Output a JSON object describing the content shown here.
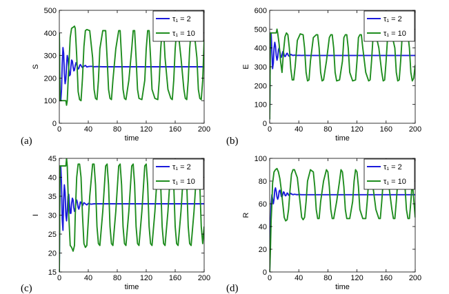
{
  "chart_data": [
    {
      "type": "line",
      "panel_label": "(a)",
      "ylabel": "S",
      "xlabel": "time",
      "xlim": [
        0,
        200
      ],
      "ylim": [
        0,
        500
      ],
      "xticks": [
        0,
        40,
        80,
        120,
        160,
        200
      ],
      "yticks": [
        0,
        100,
        200,
        300,
        400,
        500
      ],
      "legend_position": "top-right",
      "series": [
        {
          "name": "τ₁ = 2",
          "color": "#1a1adb",
          "x": [
            0,
            0.5,
            1,
            2,
            3,
            4,
            5,
            6,
            7,
            8,
            9,
            10,
            11,
            12,
            13,
            14,
            15,
            16,
            17,
            18,
            19,
            20,
            21,
            22,
            23,
            24,
            25,
            26,
            27,
            28,
            29,
            30,
            32,
            34,
            36,
            38,
            40,
            44,
            48,
            52,
            60,
            80,
            120,
            160,
            200
          ],
          "y": [
            400,
            250,
            100,
            100,
            150,
            260,
            335,
            310,
            220,
            175,
            195,
            260,
            300,
            285,
            240,
            210,
            215,
            250,
            280,
            275,
            250,
            232,
            235,
            255,
            268,
            262,
            248,
            240,
            243,
            255,
            260,
            255,
            246,
            252,
            256,
            249,
            251,
            252,
            250,
            251,
            250,
            250,
            250,
            250,
            250
          ]
        },
        {
          "name": "τ₁ = 10",
          "color": "#1e8c1e",
          "x": [
            0,
            0.5,
            1,
            5,
            9,
            10,
            11,
            13,
            15,
            17,
            19,
            21,
            22,
            24,
            26,
            28,
            30,
            32,
            34,
            36,
            38,
            42,
            46,
            48,
            50,
            52,
            54,
            56,
            60,
            64,
            66,
            68,
            70,
            72,
            74,
            78,
            82,
            84,
            86,
            88,
            90,
            92,
            96,
            100,
            102,
            104,
            106,
            108,
            110,
            114,
            118,
            120,
            122,
            124,
            126,
            128,
            132,
            136,
            138,
            140,
            142,
            144,
            146,
            150,
            154,
            156,
            158,
            160,
            162,
            164,
            168,
            172,
            174,
            176,
            178,
            180,
            182,
            186,
            190,
            192,
            194,
            196,
            198,
            200
          ],
          "y": [
            400,
            250,
            100,
            100,
            100,
            80,
            100,
            250,
            380,
            420,
            425,
            430,
            420,
            300,
            140,
            105,
            100,
            200,
            340,
            410,
            415,
            410,
            290,
            150,
            110,
            105,
            190,
            330,
            410,
            410,
            290,
            150,
            110,
            105,
            190,
            330,
            410,
            410,
            290,
            150,
            110,
            105,
            190,
            330,
            410,
            410,
            290,
            150,
            110,
            105,
            190,
            330,
            410,
            410,
            290,
            150,
            110,
            105,
            190,
            330,
            410,
            410,
            290,
            150,
            110,
            105,
            190,
            330,
            410,
            410,
            290,
            150,
            110,
            105,
            190,
            330,
            410,
            410,
            290,
            150,
            110,
            105,
            190,
            370
          ]
        }
      ]
    },
    {
      "type": "line",
      "panel_label": "(b)",
      "ylabel": "E",
      "xlabel": "time",
      "xlim": [
        0,
        200
      ],
      "ylim": [
        0,
        600
      ],
      "xticks": [
        0,
        40,
        80,
        120,
        160,
        200
      ],
      "yticks": [
        0,
        100,
        200,
        300,
        400,
        500,
        600
      ],
      "legend_position": "top-right",
      "series": [
        {
          "name": "τ₁ = 2",
          "color": "#1a1adb",
          "x": [
            0,
            1,
            2,
            3,
            4,
            5,
            6,
            7,
            8,
            9,
            10,
            11,
            12,
            13,
            14,
            15,
            16,
            17,
            18,
            19,
            20,
            21,
            22,
            23,
            24,
            25,
            26,
            27,
            28,
            29,
            30,
            32,
            34,
            36,
            38,
            40,
            44,
            48,
            52,
            60,
            80,
            120,
            160,
            200
          ],
          "y": [
            20,
            480,
            480,
            380,
            290,
            320,
            400,
            430,
            410,
            360,
            335,
            350,
            390,
            400,
            380,
            355,
            350,
            365,
            380,
            378,
            362,
            354,
            358,
            368,
            372,
            366,
            358,
            356,
            360,
            366,
            364,
            360,
            362,
            361,
            360,
            361,
            360,
            361,
            360,
            360,
            360,
            360,
            360,
            360
          ]
        },
        {
          "name": "τ₁ = 10",
          "color": "#1e8c1e",
          "x": [
            0,
            1,
            2,
            5,
            9,
            10,
            11,
            13,
            15,
            17,
            19,
            21,
            23,
            25,
            27,
            29,
            31,
            33,
            35,
            38,
            42,
            46,
            48,
            50,
            52,
            54,
            56,
            60,
            64,
            66,
            68,
            70,
            72,
            74,
            78,
            82,
            84,
            86,
            88,
            90,
            92,
            96,
            100,
            102,
            104,
            106,
            108,
            110,
            114,
            118,
            120,
            122,
            124,
            126,
            128,
            132,
            136,
            138,
            140,
            142,
            144,
            146,
            150,
            154,
            156,
            158,
            160,
            162,
            164,
            168,
            172,
            174,
            176,
            178,
            180,
            182,
            186,
            190,
            192,
            194,
            196,
            198,
            200
          ],
          "y": [
            20,
            480,
            480,
            480,
            480,
            500,
            480,
            420,
            330,
            270,
            380,
            460,
            480,
            470,
            400,
            290,
            230,
            230,
            300,
            440,
            475,
            470,
            400,
            270,
            225,
            230,
            330,
            455,
            470,
            470,
            400,
            270,
            225,
            230,
            330,
            455,
            470,
            470,
            400,
            270,
            225,
            230,
            330,
            455,
            470,
            470,
            400,
            270,
            225,
            230,
            330,
            455,
            470,
            470,
            400,
            270,
            225,
            230,
            330,
            455,
            470,
            470,
            400,
            270,
            225,
            230,
            330,
            455,
            470,
            470,
            400,
            270,
            225,
            230,
            330,
            455,
            470,
            470,
            400,
            270,
            225,
            240,
            310
          ]
        }
      ]
    },
    {
      "type": "line",
      "panel_label": "(c)",
      "ylabel": "I",
      "xlabel": "time",
      "xlim": [
        0,
        200
      ],
      "ylim": [
        15,
        45
      ],
      "xticks": [
        0,
        40,
        80,
        120,
        160,
        200
      ],
      "yticks": [
        15,
        20,
        25,
        30,
        35,
        40,
        45
      ],
      "legend_position": "top-right",
      "series": [
        {
          "name": "τ₁ = 2",
          "color": "#1a1adb",
          "x": [
            0,
            1,
            2,
            3,
            4,
            5,
            6,
            7,
            8,
            9,
            10,
            11,
            12,
            13,
            14,
            15,
            16,
            17,
            18,
            19,
            20,
            21,
            22,
            23,
            24,
            25,
            26,
            27,
            28,
            29,
            30,
            32,
            34,
            36,
            38,
            40,
            44,
            48,
            52,
            60,
            80,
            120,
            160,
            200
          ],
          "y": [
            15,
            40,
            43,
            38,
            29,
            26,
            34,
            38,
            36,
            30,
            28.5,
            31,
            35,
            35.5,
            33,
            30.5,
            30.5,
            33,
            34.5,
            34,
            32,
            31,
            31.5,
            33.5,
            34,
            33.2,
            32,
            31.6,
            32.3,
            33.5,
            33.4,
            32.5,
            33.3,
            33,
            32.7,
            33.1,
            32.9,
            33,
            33,
            33,
            33,
            33,
            33,
            33
          ]
        },
        {
          "name": "τ₁ = 10",
          "color": "#1e8c1e",
          "x": [
            0,
            1,
            2,
            5,
            9,
            10,
            11,
            13,
            15,
            17,
            19,
            21,
            22,
            24,
            26,
            28,
            30,
            32,
            34,
            36,
            38,
            42,
            46,
            48,
            50,
            52,
            54,
            56,
            60,
            64,
            66,
            68,
            70,
            72,
            74,
            78,
            82,
            84,
            86,
            88,
            90,
            92,
            96,
            100,
            102,
            104,
            106,
            108,
            110,
            114,
            118,
            120,
            122,
            124,
            126,
            128,
            132,
            136,
            138,
            140,
            142,
            144,
            146,
            150,
            154,
            156,
            158,
            160,
            162,
            164,
            168,
            172,
            174,
            176,
            178,
            180,
            182,
            186,
            190,
            192,
            194,
            196,
            198,
            200
          ],
          "y": [
            15,
            43,
            43,
            43,
            43,
            45,
            43,
            30,
            22,
            21.5,
            20.5,
            22,
            30,
            40,
            43.5,
            43.5,
            40,
            30,
            22.5,
            21.5,
            22,
            35,
            43.5,
            43.5,
            38,
            27,
            22.5,
            22,
            31,
            43,
            43.5,
            38,
            27,
            22.5,
            22,
            31,
            43,
            43.5,
            38,
            27,
            22.5,
            22,
            31,
            43,
            43.5,
            38,
            27,
            22.5,
            22,
            31,
            43,
            43.5,
            38,
            27,
            22.5,
            22,
            31,
            43,
            43.5,
            38,
            27,
            22.5,
            22,
            31,
            43,
            43.5,
            38,
            27,
            22.5,
            22,
            31,
            43,
            43.5,
            38,
            27,
            22.5,
            22,
            31,
            43,
            43.5,
            38,
            27,
            22.5,
            27
          ]
        }
      ]
    },
    {
      "type": "line",
      "panel_label": "(d)",
      "ylabel": "R",
      "xlabel": "time",
      "xlim": [
        0,
        200
      ],
      "ylim": [
        0,
        100
      ],
      "xticks": [
        0,
        40,
        80,
        120,
        160,
        200
      ],
      "yticks": [
        0,
        20,
        40,
        60,
        80,
        100
      ],
      "legend_position": "top-right",
      "series": [
        {
          "name": "τ₁ = 2",
          "color": "#1a1adb",
          "x": [
            0,
            1,
            2,
            3,
            4,
            5,
            6,
            7,
            8,
            9,
            10,
            11,
            12,
            13,
            14,
            15,
            16,
            17,
            18,
            19,
            20,
            21,
            22,
            23,
            24,
            25,
            26,
            27,
            28,
            29,
            30,
            32,
            34,
            36,
            38,
            40,
            44,
            48,
            52,
            60,
            80,
            120,
            160,
            200
          ],
          "y": [
            0,
            40,
            60,
            68,
            64,
            60,
            64,
            72,
            74,
            71,
            66,
            64,
            66,
            71,
            72,
            70,
            66.5,
            66,
            68,
            70.5,
            70,
            67.5,
            67,
            68,
            69.5,
            69,
            67.5,
            67.5,
            68.5,
            69.2,
            68.6,
            68,
            68.4,
            68.2,
            68,
            68.2,
            68,
            68,
            68,
            68,
            68,
            68,
            68,
            68
          ]
        },
        {
          "name": "τ₁ = 10",
          "color": "#1e8c1e",
          "x": [
            0,
            1,
            2,
            3,
            4,
            6,
            8,
            10,
            12,
            14,
            16,
            18,
            20,
            22,
            24,
            26,
            28,
            30,
            32,
            34,
            38,
            42,
            44,
            46,
            48,
            50,
            52,
            56,
            60,
            62,
            64,
            66,
            68,
            70,
            74,
            78,
            80,
            82,
            84,
            86,
            88,
            92,
            96,
            98,
            100,
            102,
            104,
            106,
            110,
            114,
            116,
            118,
            120,
            122,
            124,
            128,
            132,
            134,
            136,
            138,
            140,
            142,
            146,
            150,
            152,
            154,
            156,
            158,
            160,
            164,
            168,
            170,
            172,
            174,
            176,
            178,
            182,
            186,
            188,
            190,
            192,
            194,
            196,
            200
          ],
          "y": [
            0,
            20,
            45,
            60,
            78,
            88,
            90,
            91,
            88,
            82,
            72,
            60,
            48,
            45,
            46,
            55,
            72,
            86,
            90,
            90,
            83,
            60,
            48,
            46,
            48,
            62,
            80,
            90,
            88,
            75,
            55,
            47,
            47,
            62,
            80,
            90,
            88,
            75,
            55,
            47,
            47,
            62,
            80,
            90,
            88,
            75,
            55,
            47,
            47,
            62,
            80,
            90,
            88,
            75,
            55,
            47,
            47,
            62,
            80,
            90,
            88,
            75,
            55,
            47,
            47,
            62,
            80,
            90,
            88,
            75,
            55,
            47,
            47,
            62,
            80,
            90,
            88,
            75,
            55,
            47,
            47,
            62,
            80,
            48
          ]
        }
      ]
    }
  ]
}
